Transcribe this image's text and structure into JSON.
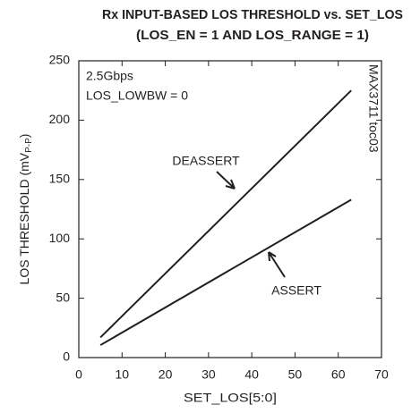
{
  "chart_data": {
    "type": "line",
    "title": [
      "Rx INPUT-BASED LOS THRESHOLD vs. SET_LOS",
      "(LOS_EN = 1 AND LOS_RANGE = 1)"
    ],
    "x_label": "SET_LOS[5:0]",
    "y_label": {
      "text": "LOS THRESHOLD (mV",
      "subscript": "P-P",
      "suffix": ")"
    },
    "x": [
      5,
      63
    ],
    "series": [
      {
        "name": "DEASSERT",
        "color": "#231f20",
        "values": [
          17,
          225
        ]
      },
      {
        "name": "ASSERT",
        "color": "#231f20",
        "values": [
          10.5,
          133
        ]
      }
    ],
    "xlim": [
      0,
      70
    ],
    "xticks": [
      0,
      10,
      20,
      30,
      40,
      50,
      60,
      70
    ],
    "ylim": [
      0,
      250
    ],
    "yticks": [
      0,
      50,
      100,
      150,
      200,
      250
    ],
    "annotations": [
      "2.5Gbps",
      "LOS_LOWBW = 0"
    ],
    "figure_id": "MAX3711 toc03"
  }
}
